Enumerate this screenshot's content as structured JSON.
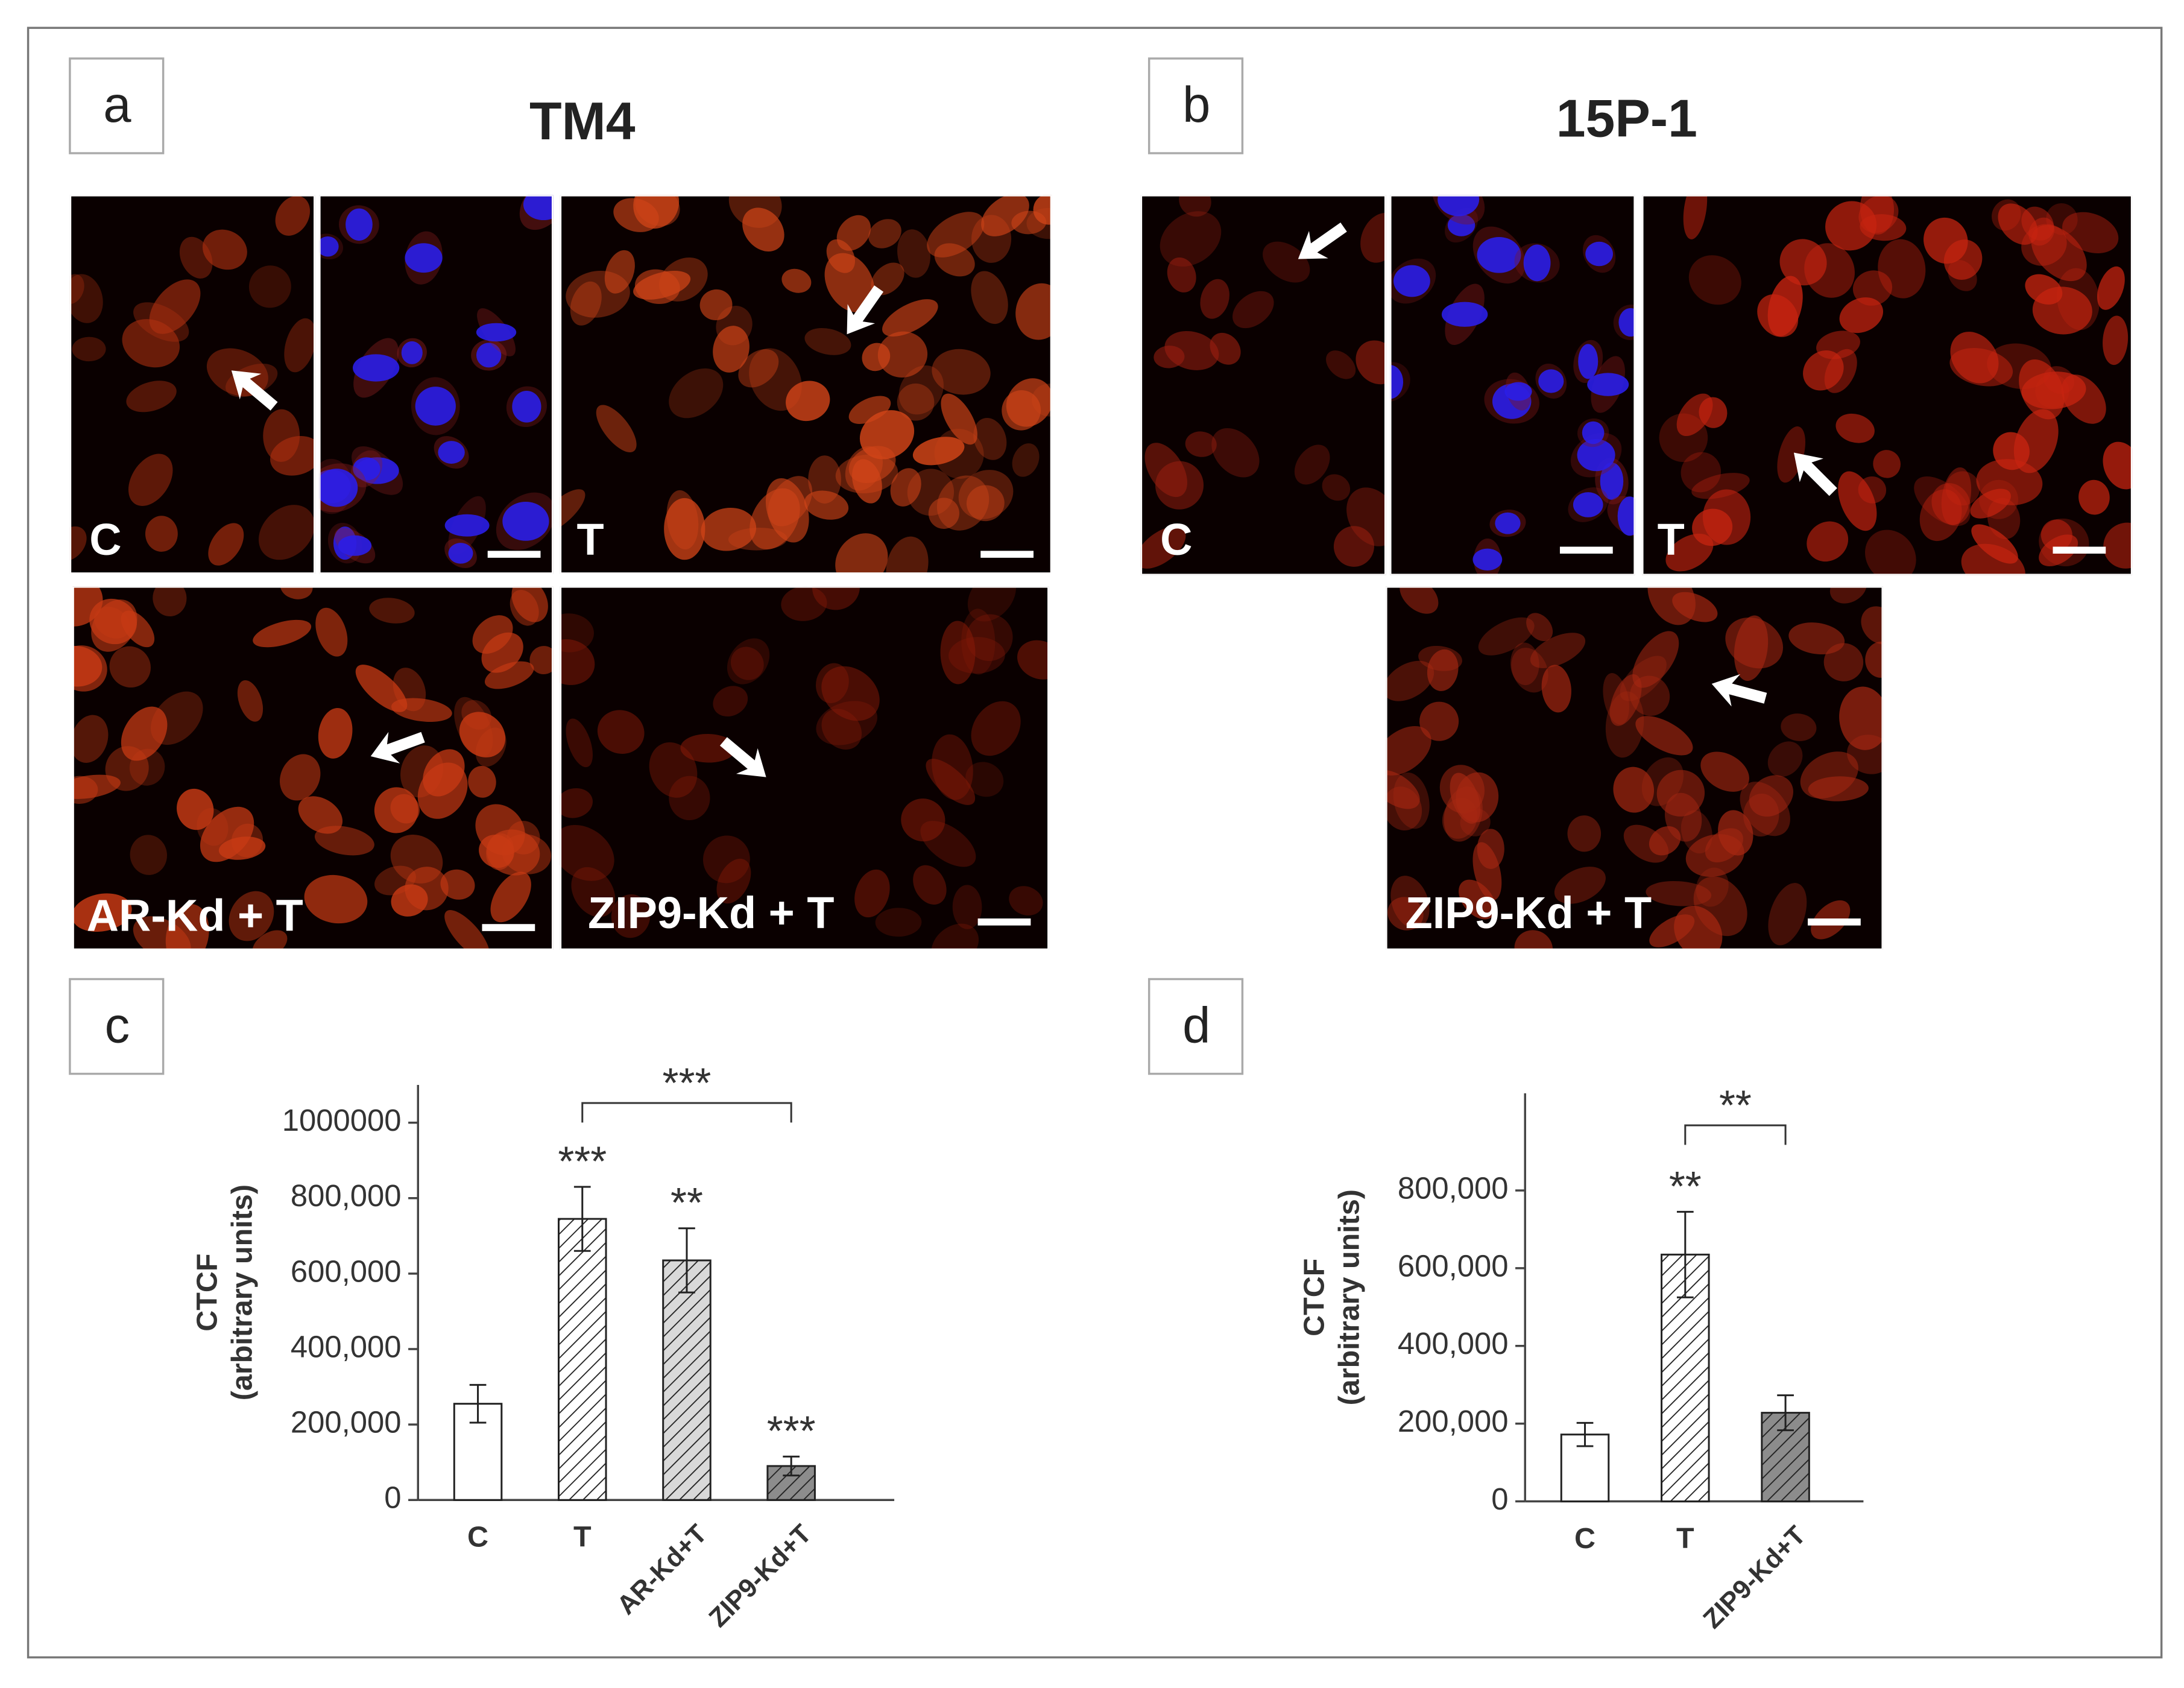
{
  "panel_labels": [
    "a",
    "b",
    "c",
    "d"
  ],
  "titles": [
    "TM4",
    "15P-1"
  ],
  "image_labels": {
    "a": [
      "C",
      "T",
      "AR-Kd + T",
      "ZIP9-Kd + T"
    ],
    "b": [
      "C",
      "T",
      "ZIP9-Kd + T"
    ]
  },
  "chart_data": [
    {
      "type": "bar",
      "y_label": [
        "CTCF",
        "(arbitrary units)"
      ],
      "categories": [
        "C",
        "T",
        "AR-Kd+T",
        "ZIP9-Kd+T"
      ],
      "values": [
        255000,
        745000,
        635000,
        90000
      ],
      "errors": [
        50000,
        85000,
        85000,
        25000
      ],
      "fills": [
        "#ffffff",
        "#ffffff",
        "#d9d9d9",
        "#8c8c8c"
      ],
      "hatch": [
        false,
        true,
        true,
        true
      ],
      "significance": [
        null,
        "***",
        "**",
        "***"
      ],
      "bracket": {
        "categories": [
          "T",
          "ZIP9-Kd+T"
        ],
        "label": "***"
      },
      "ylim": [
        0,
        1100000
      ],
      "yticks": [
        0,
        {
          "value": 200000,
          "label": "200,000"
        },
        {
          "value": 400000,
          "label": "400,000"
        },
        {
          "value": 600000,
          "label": "600,000"
        },
        {
          "value": 800000,
          "label": "800,000"
        },
        1000000
      ]
    },
    {
      "type": "bar",
      "y_label": [
        "CTCF",
        "(arbitrary units)"
      ],
      "categories": [
        "C",
        "T",
        "ZIP9-Kd+T"
      ],
      "values": [
        172000,
        635000,
        228000
      ],
      "errors": [
        30000,
        110000,
        45000
      ],
      "fills": [
        "#ffffff",
        "#ffffff",
        "#8c8c8c"
      ],
      "hatch": [
        false,
        true,
        true
      ],
      "significance": [
        null,
        "**",
        null
      ],
      "bracket": {
        "categories": [
          "T",
          "ZIP9-Kd+T"
        ],
        "label": "**"
      },
      "ylim": [
        0,
        1050000
      ],
      "yticks": [
        0,
        {
          "value": 200000,
          "label": "200,000"
        },
        {
          "value": 400000,
          "label": "400,000"
        },
        {
          "value": 600000,
          "label": "600,000"
        },
        {
          "value": 800000,
          "label": "800,000"
        }
      ]
    }
  ]
}
